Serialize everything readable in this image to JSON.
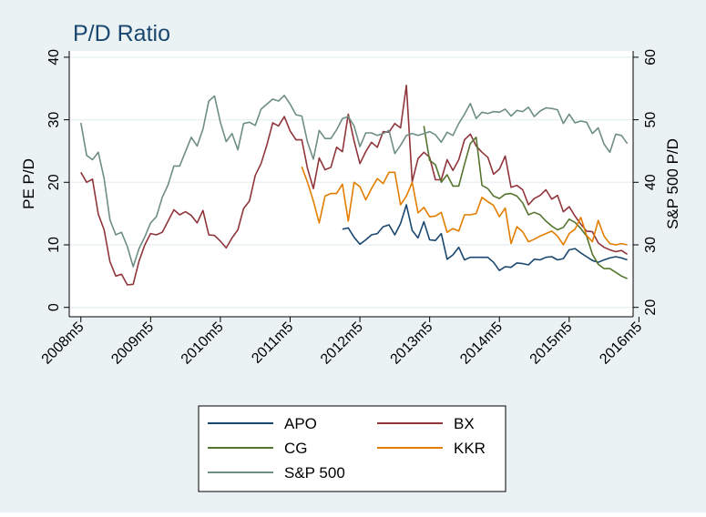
{
  "chart_data": {
    "type": "line",
    "title": "P/D Ratio",
    "ylabel": "PE P/D",
    "y2label": "S&P 500 P/D",
    "xticks": [
      "2008m5",
      "2009m5",
      "2010m5",
      "2011m5",
      "2012m5",
      "2013m5",
      "2014m5",
      "2015m5",
      "2016m5"
    ],
    "yticks": [
      0,
      10,
      20,
      30,
      40
    ],
    "y2ticks": [
      20,
      30,
      40,
      50,
      60
    ],
    "ylim": [
      -1.5,
      41
    ],
    "y2lim": [
      18.5,
      61
    ],
    "xlim": [
      -2,
      95
    ],
    "x_unit": "months since 2008m5",
    "grid": true,
    "legend_position": "bottom",
    "legend": [
      "APO",
      "BX",
      "CG",
      "KKR",
      "S&P 500"
    ],
    "series": [
      {
        "name": "APO",
        "color": "#1a476f",
        "axis": "left",
        "x": [
          45,
          46,
          47,
          48,
          49,
          50,
          51,
          52,
          53,
          54,
          55,
          56,
          57,
          58,
          59,
          60,
          61,
          62,
          63,
          64,
          65,
          66,
          67,
          68,
          69,
          70,
          71,
          72,
          73,
          74,
          75,
          76,
          77,
          78,
          79,
          80,
          81,
          82,
          83,
          84,
          85,
          86,
          87,
          88,
          89,
          90,
          91,
          92,
          93,
          94
        ],
        "values": [
          12.5,
          12.7,
          11.2,
          10.1,
          10.8,
          11.6,
          11.8,
          12.9,
          13.2,
          11.6,
          13.4,
          16.4,
          12.3,
          11.1,
          13.7,
          10.8,
          10.7,
          11.8,
          7.7,
          8.4,
          9.6,
          7.6,
          8.0,
          8.0,
          8.0,
          8.0,
          7.2,
          5.9,
          6.5,
          6.4,
          7.1,
          7.0,
          6.8,
          7.7,
          7.6,
          8.0,
          8.1,
          7.6,
          7.8,
          9.2,
          9.4,
          8.7,
          8.1,
          7.5,
          7.2,
          7.6,
          7.9,
          8.1,
          7.9,
          7.6
        ]
      },
      {
        "name": "BX",
        "color": "#90353b",
        "axis": "left",
        "x": [
          0,
          1,
          2,
          3,
          4,
          5,
          6,
          7,
          8,
          9,
          10,
          11,
          12,
          13,
          14,
          15,
          16,
          17,
          18,
          19,
          20,
          21,
          22,
          23,
          24,
          25,
          26,
          27,
          28,
          29,
          30,
          31,
          32,
          33,
          34,
          35,
          36,
          37,
          38,
          39,
          40,
          41,
          42,
          43,
          44,
          45,
          46,
          47,
          48,
          49,
          50,
          51,
          52,
          53,
          54,
          55,
          56,
          57,
          58,
          59,
          60,
          61,
          62,
          63,
          64,
          65,
          66,
          67,
          68,
          69,
          70,
          71,
          72,
          73,
          74,
          75,
          76,
          77,
          78,
          79,
          80,
          81,
          82,
          83,
          84,
          85,
          86,
          87,
          88,
          89,
          90,
          91,
          92,
          93,
          94
        ],
        "values": [
          21.6,
          20.0,
          20.5,
          14.9,
          12.4,
          7.3,
          5.0,
          5.3,
          3.6,
          3.7,
          7.4,
          10.0,
          11.8,
          11.6,
          12.0,
          13.8,
          15.6,
          14.8,
          15.3,
          14.7,
          13.5,
          15.5,
          11.6,
          11.5,
          10.6,
          9.5,
          11.1,
          12.4,
          15.8,
          17.0,
          21.1,
          23.0,
          26.0,
          29.5,
          29.0,
          30.5,
          28.2,
          26.8,
          26.8,
          22.2,
          19.0,
          23.9,
          22.0,
          22.4,
          25.6,
          24.9,
          30.9,
          26.6,
          23.0,
          24.9,
          26.4,
          25.6,
          28.1,
          28.0,
          29.4,
          28.7,
          35.5,
          20.1,
          23.8,
          24.8,
          24.0,
          20.4,
          20.4,
          23.6,
          21.9,
          23.6,
          26.8,
          27.7,
          25.8,
          24.8,
          24.0,
          21.3,
          22.1,
          24.2,
          19.2,
          19.5,
          18.8,
          16.4,
          17.4,
          17.9,
          18.8,
          17.3,
          17.9,
          15.3,
          16.1,
          14.6,
          13.3,
          12.2,
          12.1,
          10.3,
          9.6,
          9.2,
          8.9,
          9.1,
          8.5
        ]
      },
      {
        "name": "CG",
        "color": "#55752f",
        "axis": "left",
        "x": [
          59,
          60,
          61,
          62,
          63,
          64,
          65,
          66,
          67,
          68,
          69,
          70,
          71,
          72,
          73,
          74,
          75,
          76,
          77,
          78,
          79,
          80,
          81,
          82,
          83,
          84,
          85,
          86,
          87,
          88,
          89,
          90,
          91,
          92,
          93,
          94
        ],
        "values": [
          29.0,
          23.5,
          22.8,
          20.0,
          21.2,
          19.4,
          19.4,
          22.9,
          26.2,
          27.2,
          19.5,
          19.0,
          17.8,
          17.4,
          18.1,
          18.2,
          17.8,
          16.7,
          14.8,
          15.2,
          14.8,
          13.8,
          13.0,
          12.4,
          12.8,
          14.1,
          13.6,
          12.6,
          11.4,
          8.5,
          6.9,
          6.2,
          6.2,
          5.6,
          5.0,
          4.6
        ]
      },
      {
        "name": "KKR",
        "color": "#e37e00",
        "axis": "left",
        "x": [
          38,
          39,
          40,
          41,
          42,
          43,
          44,
          45,
          46,
          47,
          48,
          49,
          50,
          51,
          52,
          53,
          54,
          55,
          56,
          57,
          58,
          59,
          60,
          61,
          62,
          63,
          64,
          65,
          66,
          67,
          68,
          69,
          70,
          71,
          72,
          73,
          74,
          75,
          76,
          77,
          78,
          79,
          80,
          81,
          82,
          83,
          84,
          85,
          86,
          87,
          88,
          89,
          90,
          91,
          92,
          93,
          94
        ],
        "values": [
          22.5,
          20.0,
          17.0,
          13.5,
          17.8,
          18.2,
          18.2,
          19.7,
          13.8,
          20.0,
          19.3,
          17.2,
          19.0,
          20.6,
          19.8,
          21.6,
          21.6,
          16.4,
          17.8,
          20.0,
          15.1,
          16.0,
          14.5,
          14.6,
          15.2,
          12.0,
          12.6,
          12.2,
          14.8,
          14.8,
          15.0,
          17.6,
          16.9,
          16.3,
          14.5,
          15.9,
          10.2,
          12.9,
          12.1,
          10.5,
          10.9,
          11.4,
          11.8,
          12.2,
          11.4,
          10.0,
          11.8,
          12.5,
          14.4,
          11.5,
          10.5,
          13.9,
          11.4,
          10.2,
          10.0,
          10.2,
          10.0
        ]
      },
      {
        "name": "S&P 500",
        "color": "#6e8e84",
        "axis": "right",
        "x": [
          0,
          1,
          2,
          3,
          4,
          5,
          6,
          7,
          8,
          9,
          10,
          11,
          12,
          13,
          14,
          15,
          16,
          17,
          18,
          19,
          20,
          21,
          22,
          23,
          24,
          25,
          26,
          27,
          28,
          29,
          30,
          31,
          32,
          33,
          34,
          35,
          36,
          37,
          38,
          39,
          40,
          41,
          42,
          43,
          44,
          45,
          46,
          47,
          48,
          49,
          50,
          51,
          52,
          53,
          54,
          55,
          56,
          57,
          58,
          59,
          60,
          61,
          62,
          63,
          64,
          65,
          66,
          67,
          68,
          69,
          70,
          71,
          72,
          73,
          74,
          75,
          76,
          77,
          78,
          79,
          80,
          81,
          82,
          83,
          84,
          85,
          86,
          87,
          88,
          89,
          90,
          91,
          92,
          93,
          94
        ],
        "values": [
          49.5,
          44.3,
          43.6,
          44.8,
          40.6,
          34.0,
          31.6,
          32.0,
          29.7,
          26.5,
          29.4,
          31.3,
          33.5,
          34.5,
          37.6,
          39.6,
          42.6,
          42.6,
          44.9,
          47.2,
          45.8,
          48.5,
          53.0,
          53.8,
          49.6,
          46.5,
          47.8,
          45.2,
          49.4,
          49.6,
          49.1,
          51.7,
          52.5,
          53.3,
          53.0,
          53.9,
          52.5,
          50.8,
          50.6,
          46.4,
          43.7,
          48.3,
          47.0,
          47.0,
          48.4,
          50.2,
          50.5,
          49.0,
          45.7,
          47.9,
          47.9,
          47.5,
          47.8,
          48.3,
          44.6,
          45.9,
          47.5,
          47.8,
          47.5,
          47.8,
          48.1,
          47.6,
          46.4,
          48.0,
          47.5,
          49.4,
          50.9,
          52.6,
          50.2,
          51.2,
          51.0,
          51.3,
          51.2,
          51.7,
          50.6,
          51.5,
          51.3,
          52.0,
          50.5,
          51.4,
          51.9,
          51.8,
          51.6,
          49.4,
          50.9,
          49.5,
          49.8,
          49.6,
          47.8,
          48.7,
          46.1,
          44.8,
          47.7,
          47.5,
          46.2
        ]
      }
    ]
  }
}
